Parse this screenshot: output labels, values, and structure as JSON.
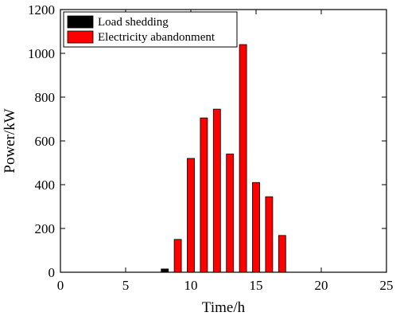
{
  "chart_data": {
    "type": "bar",
    "xlabel": "Time/h",
    "ylabel": "Power/kW",
    "xlim": [
      0,
      25
    ],
    "ylim": [
      0,
      1200
    ],
    "xticks": [
      0,
      5,
      10,
      15,
      20,
      25
    ],
    "yticks": [
      0,
      200,
      400,
      600,
      800,
      1000,
      1200
    ],
    "grid": "off",
    "legend_position": "top-left",
    "series": [
      {
        "name": "Load shedding",
        "color": "#000000",
        "points": [
          {
            "x": 8,
            "y": 15
          }
        ]
      },
      {
        "name": "Electricity abandonment",
        "color": "#ff0000",
        "points": [
          {
            "x": 9,
            "y": 150
          },
          {
            "x": 10,
            "y": 520
          },
          {
            "x": 11,
            "y": 705
          },
          {
            "x": 12,
            "y": 745
          },
          {
            "x": 13,
            "y": 540
          },
          {
            "x": 14,
            "y": 1040
          },
          {
            "x": 15,
            "y": 410
          },
          {
            "x": 16,
            "y": 345
          },
          {
            "x": 17,
            "y": 168
          }
        ]
      }
    ]
  }
}
